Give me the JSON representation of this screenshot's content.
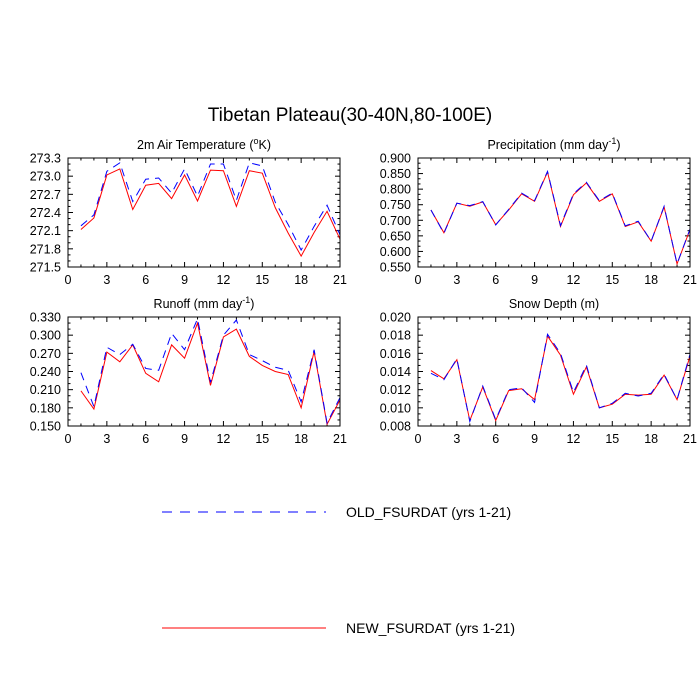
{
  "title": "Tibetan Plateau(30-40N,80-100E)",
  "colors": {
    "old": "#0000ff",
    "new": "#ff0000"
  },
  "legend": [
    {
      "key": "old",
      "label": "OLD_FSURDAT (yrs 1-21)",
      "style": "dashed"
    },
    {
      "key": "new",
      "label": "NEW_FSURDAT (yrs 1-21)",
      "style": "solid"
    }
  ],
  "chart_data": [
    {
      "type": "line",
      "title": "2m Air Temperature (",
      "title_sup": "o",
      "title_after": "K)",
      "xlim": [
        0,
        21
      ],
      "ylim": [
        271.5,
        273.3
      ],
      "xticks": [
        0,
        3,
        6,
        9,
        12,
        15,
        18,
        21
      ],
      "xtick_labels": [
        "0",
        "3",
        "6",
        "9",
        "12",
        "15",
        "18",
        "21"
      ],
      "yticks": [
        271.5,
        271.8,
        272.1,
        272.4,
        272.7,
        273.0,
        273.3
      ],
      "ytick_labels": [
        "271.5",
        "271.8",
        "272.1",
        "272.4",
        "272.7",
        "273.0",
        "273.3"
      ],
      "x": [
        1,
        2,
        3,
        4,
        5,
        6,
        7,
        8,
        9,
        10,
        11,
        12,
        13,
        14,
        15,
        16,
        17,
        18,
        19,
        20,
        21
      ],
      "series": [
        {
          "key": "old",
          "values": [
            272.18,
            272.36,
            273.08,
            273.22,
            272.58,
            272.95,
            272.97,
            272.72,
            273.12,
            272.67,
            273.2,
            273.2,
            272.6,
            273.22,
            273.17,
            272.57,
            272.2,
            271.78,
            272.17,
            272.52,
            272.03
          ]
        },
        {
          "key": "new",
          "values": [
            272.12,
            272.31,
            273.02,
            273.12,
            272.45,
            272.85,
            272.88,
            272.63,
            273.02,
            272.59,
            273.1,
            273.09,
            272.5,
            273.09,
            273.05,
            272.48,
            272.06,
            271.68,
            272.07,
            272.42,
            271.96
          ]
        }
      ]
    },
    {
      "type": "line",
      "title": "Precipitation (mm day",
      "title_sup": "-1",
      "title_after": ")",
      "xlim": [
        0,
        21
      ],
      "ylim": [
        0.55,
        0.9
      ],
      "xticks": [
        0,
        3,
        6,
        9,
        12,
        15,
        18,
        21
      ],
      "xtick_labels": [
        "0",
        "3",
        "6",
        "9",
        "12",
        "15",
        "18",
        "21"
      ],
      "yticks": [
        0.55,
        0.6,
        0.65,
        0.7,
        0.75,
        0.8,
        0.85,
        0.9
      ],
      "ytick_labels": [
        "0.550",
        "0.600",
        "0.650",
        "0.700",
        "0.750",
        "0.800",
        "0.850",
        "0.900"
      ],
      "x": [
        1,
        2,
        3,
        4,
        5,
        6,
        7,
        8,
        9,
        10,
        11,
        12,
        13,
        14,
        15,
        16,
        17,
        18,
        19,
        20,
        21
      ],
      "series": [
        {
          "key": "old",
          "values": [
            0.733,
            0.658,
            0.755,
            0.747,
            0.76,
            0.685,
            0.735,
            0.787,
            0.763,
            0.857,
            0.683,
            0.785,
            0.822,
            0.763,
            0.787,
            0.682,
            0.697,
            0.633,
            0.745,
            0.56,
            0.672
          ]
        },
        {
          "key": "new",
          "values": [
            0.733,
            0.66,
            0.755,
            0.745,
            0.759,
            0.686,
            0.733,
            0.785,
            0.761,
            0.855,
            0.68,
            0.782,
            0.82,
            0.761,
            0.785,
            0.68,
            0.695,
            0.633,
            0.743,
            0.56,
            0.67
          ]
        }
      ]
    },
    {
      "type": "line",
      "title": "Runoff (mm day",
      "title_sup": "-1",
      "title_after": ")",
      "xlim": [
        0,
        21
      ],
      "ylim": [
        0.15,
        0.33
      ],
      "xticks": [
        0,
        3,
        6,
        9,
        12,
        15,
        18,
        21
      ],
      "xtick_labels": [
        "0",
        "3",
        "6",
        "9",
        "12",
        "15",
        "18",
        "21"
      ],
      "yticks": [
        0.15,
        0.18,
        0.21,
        0.24,
        0.27,
        0.3,
        0.33
      ],
      "ytick_labels": [
        "0.150",
        "0.180",
        "0.210",
        "0.240",
        "0.270",
        "0.300",
        "0.330"
      ],
      "x": [
        1,
        2,
        3,
        4,
        5,
        6,
        7,
        8,
        9,
        10,
        11,
        12,
        13,
        14,
        15,
        16,
        17,
        18,
        19,
        20,
        21
      ],
      "series": [
        {
          "key": "old",
          "values": [
            0.238,
            0.182,
            0.28,
            0.268,
            0.285,
            0.245,
            0.242,
            0.303,
            0.276,
            0.327,
            0.222,
            0.3,
            0.325,
            0.268,
            0.258,
            0.247,
            0.242,
            0.19,
            0.276,
            0.155,
            0.197
          ]
        },
        {
          "key": "new",
          "values": [
            0.208,
            0.178,
            0.272,
            0.256,
            0.284,
            0.237,
            0.223,
            0.284,
            0.262,
            0.32,
            0.217,
            0.297,
            0.31,
            0.265,
            0.25,
            0.24,
            0.235,
            0.18,
            0.273,
            0.153,
            0.193
          ]
        }
      ]
    },
    {
      "type": "line",
      "title": "Snow Depth (m)",
      "title_sup": "",
      "title_after": "",
      "xlim": [
        0,
        21
      ],
      "ylim": [
        0.008,
        0.02
      ],
      "xticks": [
        0,
        3,
        6,
        9,
        12,
        15,
        18,
        21
      ],
      "xtick_labels": [
        "0",
        "3",
        "6",
        "9",
        "12",
        "15",
        "18",
        "21"
      ],
      "yticks": [
        0.008,
        0.01,
        0.012,
        0.014,
        0.016,
        0.018,
        0.02
      ],
      "ytick_labels": [
        "0.008",
        "0.010",
        "0.012",
        "0.014",
        "0.016",
        "0.018",
        "0.020"
      ],
      "x": [
        1,
        2,
        3,
        4,
        5,
        6,
        7,
        8,
        9,
        10,
        11,
        12,
        13,
        14,
        15,
        16,
        17,
        18,
        19,
        20,
        21
      ],
      "series": [
        {
          "key": "old",
          "values": [
            0.0138,
            0.0131,
            0.0154,
            0.0085,
            0.0124,
            0.0087,
            0.012,
            0.0122,
            0.0106,
            0.0181,
            0.016,
            0.0117,
            0.0147,
            0.01,
            0.0105,
            0.0116,
            0.0113,
            0.0116,
            0.0137,
            0.0109,
            0.0159
          ]
        },
        {
          "key": "new",
          "values": [
            0.0141,
            0.0132,
            0.0153,
            0.0086,
            0.0123,
            0.0086,
            0.0119,
            0.0121,
            0.0109,
            0.0179,
            0.0158,
            0.0115,
            0.0145,
            0.01,
            0.0104,
            0.0115,
            0.0114,
            0.0115,
            0.0136,
            0.0109,
            0.0157
          ]
        }
      ]
    }
  ]
}
